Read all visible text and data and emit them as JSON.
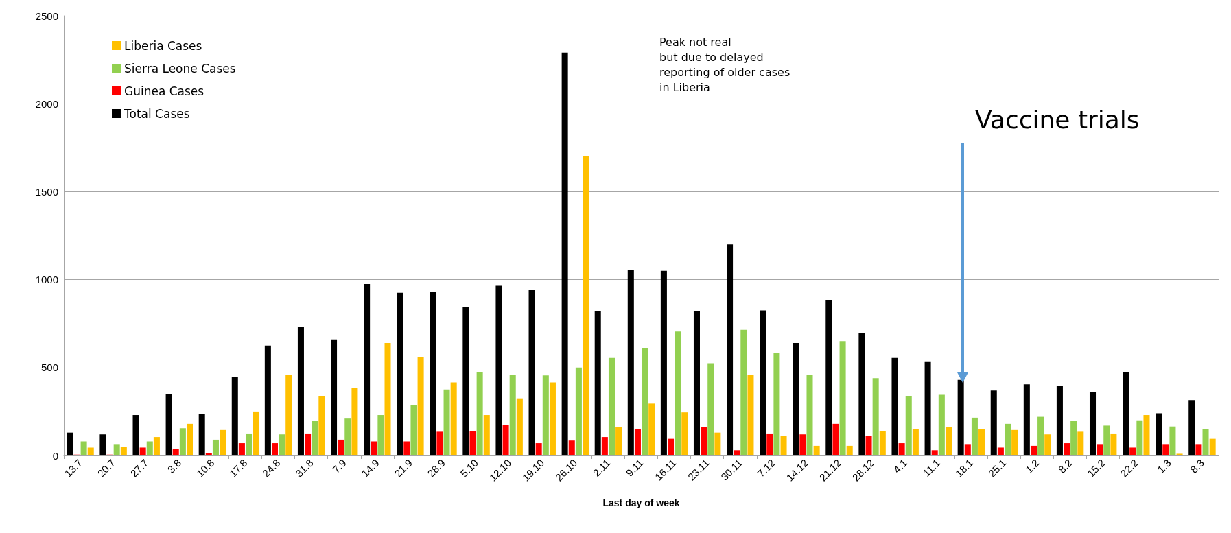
{
  "chart_data": {
    "type": "bar",
    "xlabel": "Last day of week",
    "categories": [
      "13.7",
      "20.7",
      "27.7",
      "3.8",
      "10.8",
      "17.8",
      "24.8",
      "31.8",
      "7.9",
      "14.9",
      "21.9",
      "28.9",
      "5.10",
      "12.10",
      "19.10",
      "26.10",
      "2.11",
      "9.11",
      "16.11",
      "23.11",
      "30.11",
      "7.12",
      "14.12",
      "21.12",
      "28.12",
      "4.1",
      "11.1",
      "18.1",
      "25.1",
      "1.2",
      "8.2",
      "15.2",
      "22.2",
      "1.3",
      "8.3"
    ],
    "series": [
      {
        "name": "Total Cases",
        "color": "#000000",
        "values": [
          130,
          120,
          230,
          350,
          235,
          445,
          625,
          730,
          660,
          975,
          925,
          930,
          845,
          965,
          940,
          2290,
          820,
          1055,
          1050,
          820,
          1200,
          825,
          640,
          885,
          695,
          555,
          535,
          430,
          370,
          405,
          395,
          360,
          475,
          240,
          315
        ]
      },
      {
        "name": "Guinea Cases",
        "color": "#ff0000",
        "values": [
          5,
          5,
          45,
          35,
          15,
          70,
          70,
          125,
          90,
          80,
          80,
          135,
          140,
          175,
          70,
          85,
          105,
          150,
          95,
          160,
          30,
          125,
          120,
          180,
          110,
          70,
          30,
          65,
          45,
          55,
          70,
          65,
          45,
          65,
          65
        ]
      },
      {
        "name": "Sierra Leone Cases",
        "color": "#92d050",
        "values": [
          80,
          65,
          80,
          155,
          90,
          125,
          120,
          195,
          210,
          230,
          285,
          375,
          475,
          460,
          455,
          500,
          555,
          610,
          705,
          525,
          715,
          585,
          460,
          650,
          440,
          335,
          345,
          215,
          180,
          220,
          195,
          170,
          200,
          165,
          150
        ]
      },
      {
        "name": "Liberia Cases",
        "color": "#ffc000",
        "values": [
          45,
          50,
          105,
          180,
          145,
          250,
          460,
          335,
          385,
          640,
          560,
          415,
          230,
          325,
          415,
          1700,
          160,
          295,
          245,
          130,
          460,
          110,
          55,
          55,
          140,
          150,
          160,
          150,
          145,
          120,
          135,
          125,
          230,
          10,
          95
        ]
      }
    ],
    "ylim": [
      0,
      2500
    ],
    "yticks": [
      0,
      500,
      1000,
      1500,
      2000,
      2500
    ],
    "grid": "y",
    "legend": "top left",
    "annotations": [
      "Peak not real\nbut due to delayed\nreporting of older cases\nin Liberia",
      "Vaccine trials"
    ]
  }
}
